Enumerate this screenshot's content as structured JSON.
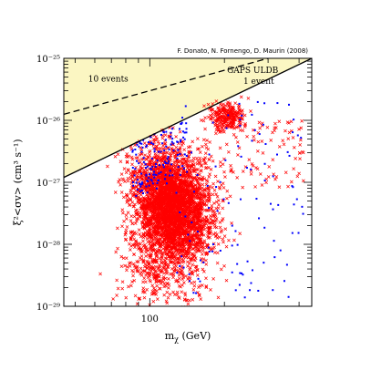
{
  "chart_data": {
    "type": "scatter",
    "credit": "F. Donato, N. Fornengo, D. Maurin (2008)",
    "xlabel": "m",
    "xlabel_sub": "χ",
    "xlabel_unit": " (GeV)",
    "ylabel": "ξ²<σv>  (cm³ s⁻¹)",
    "x_scale": "log",
    "y_scale": "log",
    "xlim": [
      45,
      450
    ],
    "ylim": [
      1e-29,
      1e-25
    ],
    "x_ticks": [
      {
        "value": 100,
        "label": "100"
      }
    ],
    "y_ticks": [
      {
        "value": 1e-25,
        "label": "10⁻²⁵"
      },
      {
        "value": 1e-26,
        "label": "10⁻²⁶"
      },
      {
        "value": 1e-27,
        "label": "10⁻²⁷"
      },
      {
        "value": 1e-28,
        "label": "10⁻²⁸"
      },
      {
        "value": 1e-29,
        "label": "10⁻²⁹"
      }
    ],
    "shaded_color": "#fbf6c2",
    "reference_lines": [
      {
        "name": "10 events",
        "style": "dashed",
        "x": [
          45,
          300
        ],
        "y": [
          1.25e-26,
          1e-25
        ]
      },
      {
        "name": "GAPS ULDB 1 event",
        "style": "solid",
        "x": [
          45,
          450
        ],
        "y": [
          1.2e-27,
          1e-25
        ]
      }
    ],
    "annotations": [
      {
        "text": "10 events",
        "x": 68,
        "y": 4.2e-26
      },
      {
        "text": "GAPS ULDB",
        "x": 260,
        "y": 5.8e-26
      },
      {
        "text": "1 event",
        "x": 275,
        "y": 3.9e-26
      }
    ],
    "series": [
      {
        "marker": "cross",
        "color": "#ff0000",
        "description_points": "dense cloud centered near m≈125 GeV, ξ²<σv>≈5e-28, spanning ~80–250 GeV and ~1e-29–3e-26"
      },
      {
        "marker": "dot",
        "color": "#0000ff",
        "description_points": "scattered points ~80–420 GeV, ~1e-29–2e-26"
      }
    ]
  }
}
